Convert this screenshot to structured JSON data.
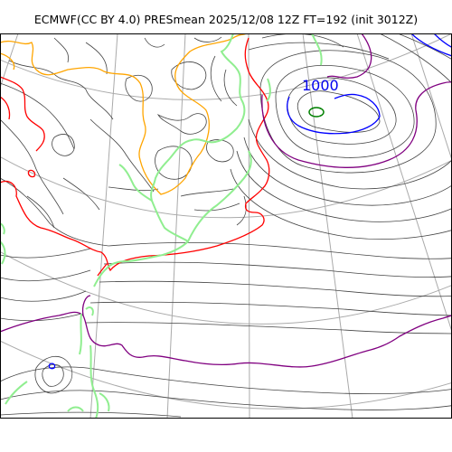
{
  "figure": {
    "title": "ECMWF(CC BY 4.0) PRESmean 2025/12/08 12Z FT=192 (init 3012Z)"
  },
  "map": {
    "contour_labels": [
      {
        "text": "1000",
        "color": "#0000ee"
      }
    ],
    "colors": {
      "thin_isobar": "#444444",
      "coast_green": "#90ee90",
      "orange_isobar": "#ffa500",
      "red_isobar": "#ff0000",
      "purple_isobar": "#800080",
      "blue_isobar": "#0000ff",
      "center_green": "#008000",
      "graticule": "#aaaaaa"
    }
  }
}
